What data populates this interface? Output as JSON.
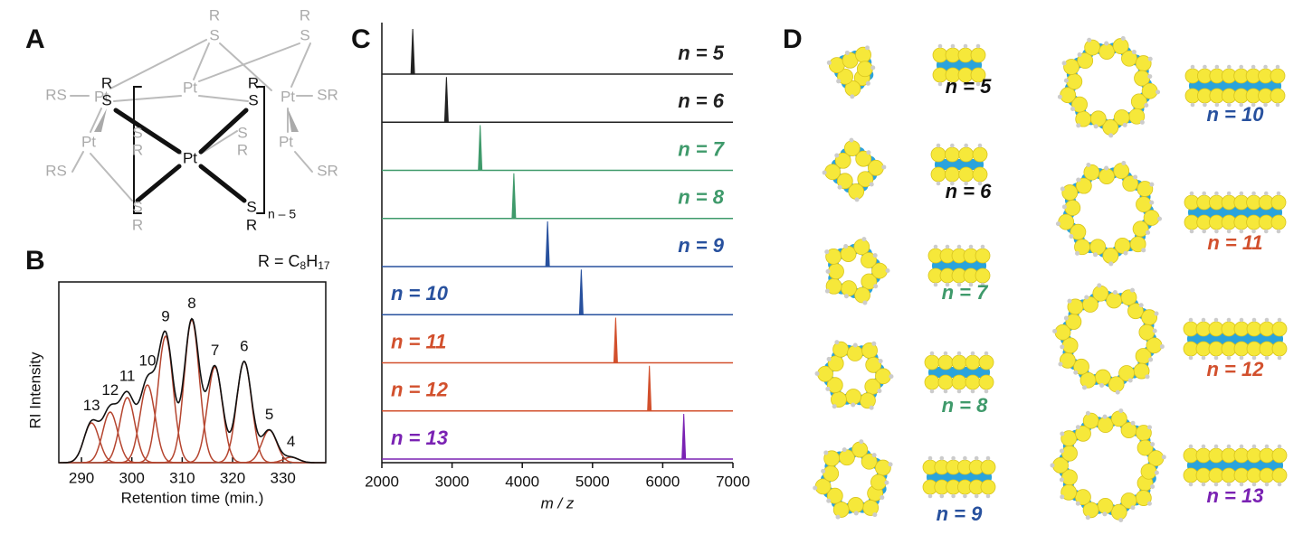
{
  "panel_a": {
    "label": "A",
    "labels": [
      "R",
      "S",
      "R",
      "S",
      "Pt",
      "RS",
      "Pt",
      "R",
      "S",
      "R",
      "S",
      "Pt",
      "S",
      "R",
      "S",
      "R",
      "Pt",
      "RS",
      "Pt",
      "SR",
      "Pt",
      "SR",
      "S",
      "R",
      "S",
      "R",
      "n – 5"
    ],
    "formula": [
      "R = C",
      "8",
      "H",
      "17"
    ]
  },
  "chart_data": [
    {
      "type": "peak-fit",
      "label": "B",
      "x_label": "Retention time (min.)",
      "y_label": "RI Intensity",
      "xlim": [
        285.5,
        338.5
      ],
      "xticks": [
        290,
        300,
        310,
        320,
        330
      ],
      "ylim": [
        0,
        1
      ],
      "peaks": [
        {
          "label": "13",
          "center": 292,
          "height": 0.22
        },
        {
          "label": "12",
          "center": 295.7,
          "height": 0.28
        },
        {
          "label": "11",
          "center": 299.1,
          "height": 0.36
        },
        {
          "label": "10",
          "center": 303.1,
          "height": 0.43
        },
        {
          "label": "9",
          "center": 306.7,
          "height": 0.7
        },
        {
          "label": "8",
          "center": 311.9,
          "height": 0.79
        },
        {
          "label": "7",
          "center": 316.5,
          "height": 0.53
        },
        {
          "label": "6",
          "center": 322.3,
          "height": 0.56
        },
        {
          "label": "5",
          "center": 327.3,
          "height": 0.18
        },
        {
          "label": "4",
          "center": 331.6,
          "height": 0.03
        }
      ],
      "peak_color": "#b5452f",
      "envelope_color": "#111111"
    },
    {
      "type": "spectrum",
      "label": "C",
      "x_label": "m / z",
      "xlim": [
        2000,
        7000
      ],
      "xticks": [
        2000,
        3000,
        4000,
        5000,
        6000,
        7000
      ],
      "series": [
        {
          "name": "n = 5",
          "color": "#222222",
          "peak_mz": 2440
        },
        {
          "name": "n = 6",
          "color": "#222222",
          "peak_mz": 2920
        },
        {
          "name": "n = 7",
          "color": "#3f9a6b",
          "peak_mz": 3400
        },
        {
          "name": "n = 8",
          "color": "#3f9a6b",
          "peak_mz": 3880
        },
        {
          "name": "n = 9",
          "color": "#28519e",
          "peak_mz": 4360
        },
        {
          "name": "n = 10",
          "color": "#28519e",
          "peak_mz": 4840
        },
        {
          "name": "n = 11",
          "color": "#d2502d",
          "peak_mz": 5330
        },
        {
          "name": "n = 12",
          "color": "#d2502d",
          "peak_mz": 5810
        },
        {
          "name": "n = 13",
          "color": "#7a22b3",
          "peak_mz": 6300
        }
      ]
    }
  ],
  "panel_d": {
    "label": "D",
    "models": [
      {
        "label": "n = 5",
        "color": "#111111"
      },
      {
        "label": "n = 6",
        "color": "#111111"
      },
      {
        "label": "n = 7",
        "color": "#3f9a6b"
      },
      {
        "label": "n = 8",
        "color": "#3f9a6b"
      },
      {
        "label": "n = 9",
        "color": "#28519e"
      },
      {
        "label": "n = 10",
        "color": "#28519e"
      },
      {
        "label": "n = 11",
        "color": "#d2502d"
      },
      {
        "label": "n = 12",
        "color": "#d2502d"
      },
      {
        "label": "n = 13",
        "color": "#7a22b3"
      }
    ]
  }
}
